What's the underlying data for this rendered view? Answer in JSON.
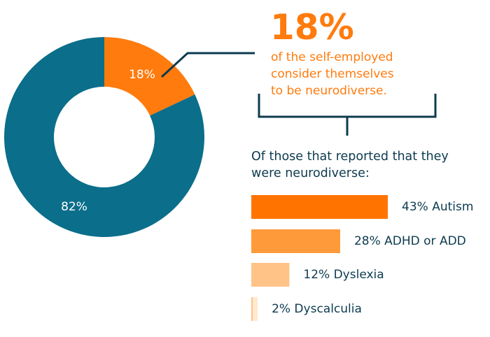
{
  "callout": {
    "big_value": "18%",
    "lines": [
      "of the self-employed",
      "consider themselves",
      "to be neurodiverse."
    ]
  },
  "breakdown_heading": {
    "lines": [
      "Of those that reported that they",
      "were neurodiverse:"
    ]
  },
  "chart_data": [
    {
      "type": "pie",
      "style": "donut",
      "slices": [
        {
          "label": "18%",
          "value": 18,
          "color": "#ff7b0e"
        },
        {
          "label": "82%",
          "value": 82,
          "color": "#0b6e8a"
        }
      ]
    },
    {
      "type": "bar",
      "orientation": "horizontal",
      "categories": [
        "Autism",
        "ADHD or ADD",
        "Dyslexia",
        "Dyscalculia"
      ],
      "values": [
        43,
        28,
        12,
        2
      ],
      "labels": [
        "43% Autism",
        "28% ADHD or ADD",
        "12% Dyslexia",
        "2% Dyscalculia"
      ],
      "colors": [
        "#ff7400",
        "#ff9a3a",
        "#ffc387",
        "#ffe9d1"
      ]
    }
  ],
  "colors": {
    "teal": "#0b6e8a",
    "orange": "#ff7b0e",
    "navy": "#0d3b4f"
  }
}
